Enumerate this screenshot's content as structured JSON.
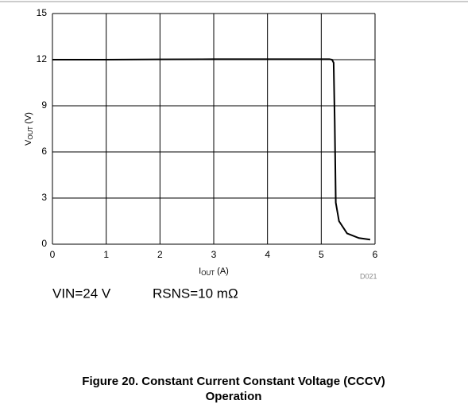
{
  "chart_data": {
    "type": "line",
    "xlabel": {
      "main": "I",
      "sub": "OUT",
      "unit": " (A)"
    },
    "ylabel": {
      "main": "V",
      "sub": "OUT",
      "unit": " (V)"
    },
    "x": [
      0,
      1,
      2,
      3,
      4,
      5,
      5.15,
      5.2,
      5.23,
      5.25,
      5.27,
      5.33,
      5.48,
      5.7,
      5.91
    ],
    "values": [
      12,
      12,
      12.02,
      12.03,
      12.03,
      12.03,
      12.03,
      12,
      11.8,
      8,
      2.7,
      1.5,
      0.7,
      0.4,
      0.3
    ],
    "color": "#000000",
    "xlim": [
      0,
      6
    ],
    "xticks": [
      0,
      1,
      2,
      3,
      4,
      5,
      6
    ],
    "ylim": [
      0,
      15
    ],
    "yticks": [
      0,
      3,
      6,
      9,
      12,
      15
    ],
    "grid": true,
    "code": "D021",
    "notes": [
      "VIN=24 V",
      "RSNS=10 mΩ"
    ],
    "caption": [
      "Figure 20. Constant Current Constant Voltage (CCCV)",
      "Operation"
    ]
  }
}
